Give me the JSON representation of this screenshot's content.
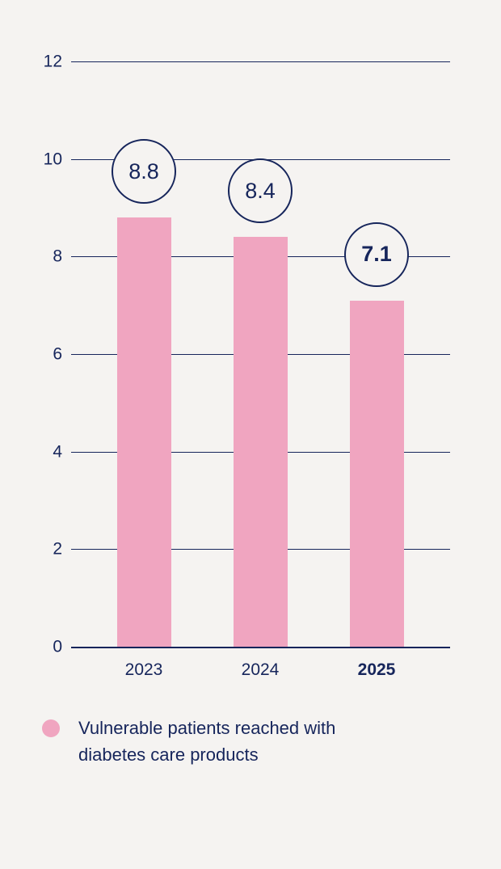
{
  "page": {
    "background": "#F5F3F1"
  },
  "chart_data": {
    "type": "bar",
    "title": "",
    "xlabel": "",
    "ylabel": "",
    "categories": [
      "2023",
      "2024",
      "2025"
    ],
    "values": [
      8.8,
      8.4,
      7.1
    ],
    "value_labels": [
      "8.8",
      "8.4",
      "7.1"
    ],
    "emphasized_category": "2025",
    "ylim": [
      0,
      12
    ],
    "yticks": [
      0,
      2,
      4,
      6,
      8,
      10,
      12
    ],
    "grid": true,
    "value_label_style": "circled-bubble-above-bar",
    "legend_position": "bottom-left",
    "colors": {
      "bar": "#F0A5C0",
      "axis_text": "#16255B",
      "gridline": "#16255B",
      "bubble_fill": "#F5F3F1",
      "background": "#F5F3F1"
    }
  },
  "legend": {
    "label": "Vulnerable patients reached with diabetes care products",
    "marker_color": "#F0A5C0"
  }
}
